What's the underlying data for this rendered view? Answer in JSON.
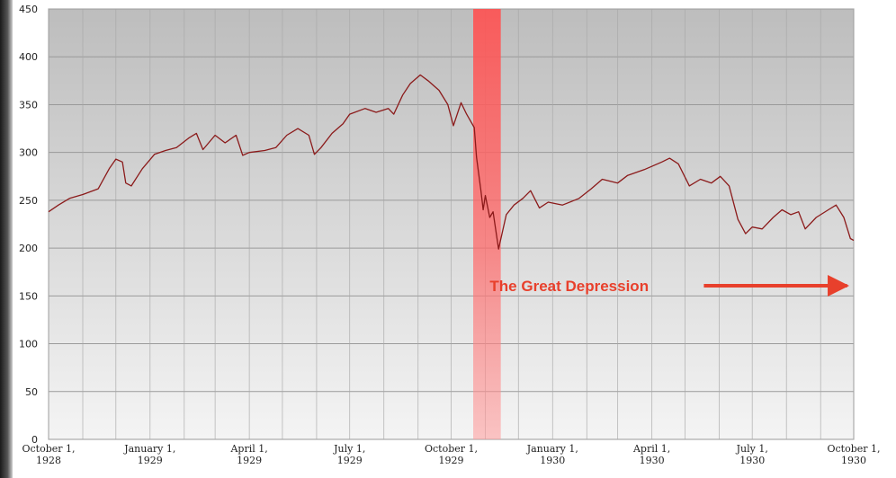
{
  "chart_data": {
    "type": "line",
    "title": "",
    "xlabel": "",
    "ylabel": "",
    "ylim": [
      0,
      450
    ],
    "y_ticks": [
      0,
      50,
      100,
      150,
      200,
      250,
      300,
      350,
      400,
      450
    ],
    "x_range": [
      "1928-10-01",
      "1930-10-01"
    ],
    "x_ticks": [
      {
        "date": "1928-10-01",
        "line1": "October 1,",
        "line2": "1928"
      },
      {
        "date": "1929-01-01",
        "line1": "January 1,",
        "line2": "1929"
      },
      {
        "date": "1929-04-01",
        "line1": "April 1,",
        "line2": "1929"
      },
      {
        "date": "1929-07-01",
        "line1": "July 1,",
        "line2": "1929"
      },
      {
        "date": "1929-10-01",
        "line1": "October 1,",
        "line2": "1929"
      },
      {
        "date": "1930-01-01",
        "line1": "January 1,",
        "line2": "1930"
      },
      {
        "date": "1930-04-01",
        "line1": "April 1,",
        "line2": "1930"
      },
      {
        "date": "1930-07-01",
        "line1": "July 1,",
        "line2": "1930"
      },
      {
        "date": "1930-10-01",
        "line1": "October 1,",
        "line2": "1930"
      }
    ],
    "grid": true,
    "series": [
      {
        "color": "#8b1a1a",
        "points": [
          [
            "1928-10-01",
            238
          ],
          [
            "1928-10-10",
            245
          ],
          [
            "1928-10-20",
            252
          ],
          [
            "1928-11-01",
            256
          ],
          [
            "1928-11-15",
            262
          ],
          [
            "1928-11-25",
            283
          ],
          [
            "1928-12-01",
            293
          ],
          [
            "1928-12-07",
            290
          ],
          [
            "1928-12-10",
            268
          ],
          [
            "1928-12-15",
            265
          ],
          [
            "1928-12-25",
            283
          ],
          [
            "1929-01-05",
            298
          ],
          [
            "1929-01-15",
            302
          ],
          [
            "1929-01-25",
            305
          ],
          [
            "1929-02-05",
            315
          ],
          [
            "1929-02-12",
            320
          ],
          [
            "1929-02-18",
            303
          ],
          [
            "1929-03-01",
            318
          ],
          [
            "1929-03-10",
            310
          ],
          [
            "1929-03-20",
            318
          ],
          [
            "1929-03-26",
            297
          ],
          [
            "1929-04-01",
            300
          ],
          [
            "1929-04-15",
            302
          ],
          [
            "1929-04-25",
            305
          ],
          [
            "1929-05-05",
            318
          ],
          [
            "1929-05-15",
            325
          ],
          [
            "1929-05-25",
            318
          ],
          [
            "1929-05-30",
            298
          ],
          [
            "1929-06-05",
            305
          ],
          [
            "1929-06-15",
            320
          ],
          [
            "1929-06-25",
            330
          ],
          [
            "1929-07-01",
            340
          ],
          [
            "1929-07-15",
            346
          ],
          [
            "1929-07-25",
            342
          ],
          [
            "1929-08-05",
            346
          ],
          [
            "1929-08-10",
            340
          ],
          [
            "1929-08-18",
            360
          ],
          [
            "1929-08-25",
            372
          ],
          [
            "1929-09-03",
            381
          ],
          [
            "1929-09-10",
            375
          ],
          [
            "1929-09-20",
            365
          ],
          [
            "1929-09-28",
            350
          ],
          [
            "1929-10-03",
            328
          ],
          [
            "1929-10-10",
            352
          ],
          [
            "1929-10-15",
            340
          ],
          [
            "1929-10-22",
            326
          ],
          [
            "1929-10-24",
            295
          ],
          [
            "1929-10-28",
            260
          ],
          [
            "1929-10-30",
            240
          ],
          [
            "1929-11-01",
            255
          ],
          [
            "1929-11-05",
            232
          ],
          [
            "1929-11-08",
            238
          ],
          [
            "1929-11-13",
            199
          ],
          [
            "1929-11-20",
            235
          ],
          [
            "1929-11-27",
            245
          ],
          [
            "1929-12-05",
            252
          ],
          [
            "1929-12-12",
            260
          ],
          [
            "1929-12-20",
            242
          ],
          [
            "1929-12-28",
            248
          ],
          [
            "1930-01-10",
            245
          ],
          [
            "1930-01-25",
            252
          ],
          [
            "1930-02-05",
            262
          ],
          [
            "1930-02-15",
            272
          ],
          [
            "1930-03-01",
            268
          ],
          [
            "1930-03-10",
            276
          ],
          [
            "1930-03-25",
            282
          ],
          [
            "1930-04-10",
            290
          ],
          [
            "1930-04-17",
            294
          ],
          [
            "1930-04-25",
            288
          ],
          [
            "1930-05-05",
            265
          ],
          [
            "1930-05-15",
            272
          ],
          [
            "1930-05-25",
            268
          ],
          [
            "1930-06-02",
            275
          ],
          [
            "1930-06-10",
            265
          ],
          [
            "1930-06-18",
            230
          ],
          [
            "1930-06-25",
            215
          ],
          [
            "1930-07-01",
            222
          ],
          [
            "1930-07-10",
            220
          ],
          [
            "1930-07-20",
            232
          ],
          [
            "1930-07-28",
            240
          ],
          [
            "1930-08-05",
            235
          ],
          [
            "1930-08-12",
            238
          ],
          [
            "1930-08-18",
            220
          ],
          [
            "1930-08-28",
            232
          ],
          [
            "1930-09-08",
            240
          ],
          [
            "1930-09-15",
            245
          ],
          [
            "1930-09-22",
            232
          ],
          [
            "1930-09-28",
            210
          ],
          [
            "1930-10-01",
            208
          ]
        ]
      }
    ],
    "highlight_band": {
      "start": "1929-10-21",
      "end": "1929-11-15",
      "color": "#ff4a4a"
    },
    "annotation": {
      "text": "The Great Depression",
      "color": "#e8402c",
      "x": "1929-11-05",
      "y": 155,
      "arrow_to": "1930-09-25"
    }
  }
}
